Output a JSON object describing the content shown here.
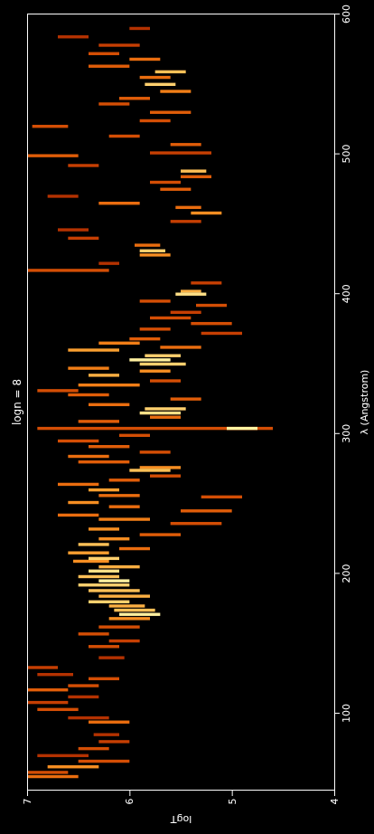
{
  "chart_data": {
    "type": "heatmap",
    "title": "logn = 8",
    "x_label": "λ (Angstrom)",
    "y_label": "logT",
    "xlim": [
      45,
      600
    ],
    "ylim": [
      4,
      7
    ],
    "xticks": [
      100,
      200,
      300,
      400,
      500,
      600
    ],
    "yticks": [
      4,
      5,
      6,
      7
    ],
    "intensity_range": [
      0,
      1
    ],
    "lines": {
      "lambda": [
        55,
        58,
        62,
        66,
        70,
        75,
        80,
        85,
        94,
        97,
        103,
        108,
        112,
        117,
        120,
        125,
        128,
        133,
        140,
        148,
        152,
        157,
        162,
        168,
        171,
        174,
        177,
        180,
        184,
        188,
        192,
        195,
        198,
        202,
        205,
        209,
        211,
        215,
        218,
        221,
        225,
        228,
        232,
        236,
        239,
        242,
        245,
        248,
        251,
        255,
        256,
        260,
        264,
        267,
        270,
        274,
        276,
        280,
        284,
        287,
        291,
        295,
        299,
        304,
        304,
        309,
        312,
        315,
        318,
        321,
        325,
        328,
        331,
        335,
        338,
        342,
        345,
        347,
        350,
        353,
        356,
        360,
        362,
        365,
        368,
        372,
        375,
        379,
        383,
        387,
        392,
        395,
        400,
        402,
        408,
        417,
        422,
        428,
        431,
        435,
        440,
        446,
        452,
        458,
        462,
        465,
        470,
        475,
        480,
        484,
        488,
        492,
        499,
        501,
        507,
        513,
        520,
        524,
        530,
        536,
        540,
        545,
        550,
        555,
        559,
        563,
        568,
        572,
        578,
        584,
        590
      ],
      "logT_min": [
        6.5,
        6.6,
        6.3,
        6.0,
        6.4,
        6.2,
        6.0,
        6.1,
        6.0,
        6.2,
        6.5,
        6.6,
        6.3,
        6.6,
        6.3,
        6.1,
        6.55,
        6.7,
        6.05,
        6.1,
        5.9,
        6.2,
        5.9,
        5.8,
        5.7,
        5.75,
        5.85,
        6.0,
        5.8,
        5.9,
        6.0,
        6.0,
        6.1,
        6.1,
        5.9,
        6.2,
        6.1,
        6.2,
        5.8,
        6.2,
        6.0,
        5.5,
        6.1,
        5.1,
        5.8,
        6.3,
        5.0,
        5.9,
        6.3,
        4.9,
        5.9,
        6.1,
        6.3,
        5.9,
        5.5,
        5.6,
        5.5,
        6.0,
        6.2,
        5.6,
        6.0,
        6.3,
        5.8,
        4.6,
        4.75,
        6.1,
        5.5,
        5.5,
        5.45,
        6.0,
        5.3,
        6.2,
        6.5,
        5.9,
        5.5,
        6.1,
        5.6,
        6.2,
        5.45,
        5.6,
        5.5,
        6.1,
        5.3,
        5.9,
        5.7,
        4.9,
        5.6,
        5.0,
        5.4,
        5.3,
        5.05,
        5.6,
        5.25,
        5.3,
        5.1,
        6.2,
        6.1,
        5.6,
        5.65,
        5.7,
        6.3,
        6.4,
        5.3,
        5.1,
        5.3,
        5.9,
        6.5,
        5.4,
        5.5,
        5.2,
        5.25,
        6.3,
        6.5,
        5.2,
        5.3,
        5.9,
        6.6,
        5.6,
        5.4,
        6.0,
        5.8,
        5.4,
        5.55,
        5.6,
        5.45,
        6.0,
        5.7,
        6.1,
        5.9,
        6.4,
        5.8
      ],
      "logT_max": [
        7.0,
        7.0,
        6.8,
        6.5,
        6.9,
        6.5,
        6.3,
        6.35,
        6.4,
        6.6,
        6.9,
        7.0,
        6.6,
        7.0,
        6.6,
        6.4,
        6.9,
        7.0,
        6.3,
        6.4,
        6.2,
        6.5,
        6.3,
        6.2,
        6.1,
        6.15,
        6.2,
        6.4,
        6.3,
        6.4,
        6.5,
        6.3,
        6.5,
        6.4,
        6.3,
        6.55,
        6.4,
        6.6,
        6.1,
        6.5,
        6.3,
        5.9,
        6.4,
        5.6,
        6.3,
        6.7,
        5.5,
        6.2,
        6.6,
        5.3,
        6.3,
        6.4,
        6.7,
        6.2,
        5.8,
        6.0,
        5.9,
        6.5,
        6.6,
        5.9,
        6.4,
        6.7,
        6.1,
        6.9,
        5.05,
        6.5,
        5.8,
        5.9,
        5.85,
        6.4,
        5.6,
        6.6,
        6.9,
        6.5,
        5.8,
        6.4,
        5.9,
        6.6,
        5.9,
        6.0,
        5.85,
        6.6,
        5.7,
        6.3,
        6.0,
        5.3,
        5.9,
        5.4,
        5.8,
        5.6,
        5.35,
        5.9,
        5.55,
        5.5,
        5.4,
        7.0,
        6.3,
        5.9,
        5.9,
        5.95,
        6.6,
        6.7,
        5.6,
        5.4,
        5.55,
        6.3,
        6.8,
        5.7,
        5.8,
        5.5,
        5.5,
        6.6,
        7.0,
        5.8,
        5.6,
        6.2,
        6.95,
        5.9,
        5.8,
        6.3,
        6.1,
        5.7,
        5.85,
        5.9,
        5.75,
        6.4,
        6.0,
        6.4,
        6.3,
        6.7,
        6.0
      ],
      "intensity": [
        0.6,
        0.5,
        0.7,
        0.5,
        0.4,
        0.5,
        0.45,
        0.4,
        0.6,
        0.4,
        0.5,
        0.45,
        0.4,
        0.55,
        0.5,
        0.5,
        0.4,
        0.45,
        0.4,
        0.5,
        0.45,
        0.5,
        0.5,
        0.7,
        1.0,
        0.85,
        0.8,
        0.9,
        0.8,
        0.85,
        0.9,
        1.0,
        0.85,
        0.95,
        0.8,
        0.7,
        0.9,
        0.75,
        0.6,
        0.85,
        0.7,
        0.55,
        0.7,
        0.5,
        0.65,
        0.6,
        0.55,
        0.6,
        0.7,
        0.5,
        0.6,
        0.75,
        0.6,
        0.55,
        0.5,
        0.85,
        0.7,
        0.55,
        0.6,
        0.5,
        0.55,
        0.5,
        0.5,
        0.5,
        1.0,
        0.55,
        0.6,
        0.95,
        0.9,
        0.6,
        0.55,
        0.55,
        0.5,
        0.65,
        0.5,
        0.8,
        0.7,
        0.65,
        0.9,
        1.0,
        0.9,
        0.75,
        0.6,
        0.65,
        0.55,
        0.45,
        0.5,
        0.5,
        0.5,
        0.45,
        0.5,
        0.5,
        0.95,
        0.8,
        0.45,
        0.5,
        0.4,
        0.7,
        0.9,
        0.6,
        0.45,
        0.4,
        0.45,
        0.7,
        0.6,
        0.6,
        0.4,
        0.55,
        0.5,
        0.55,
        0.85,
        0.45,
        0.55,
        0.45,
        0.55,
        0.5,
        0.5,
        0.5,
        0.55,
        0.5,
        0.55,
        0.65,
        0.9,
        0.6,
        0.85,
        0.55,
        0.6,
        0.5,
        0.45,
        0.4,
        0.4
      ]
    }
  }
}
